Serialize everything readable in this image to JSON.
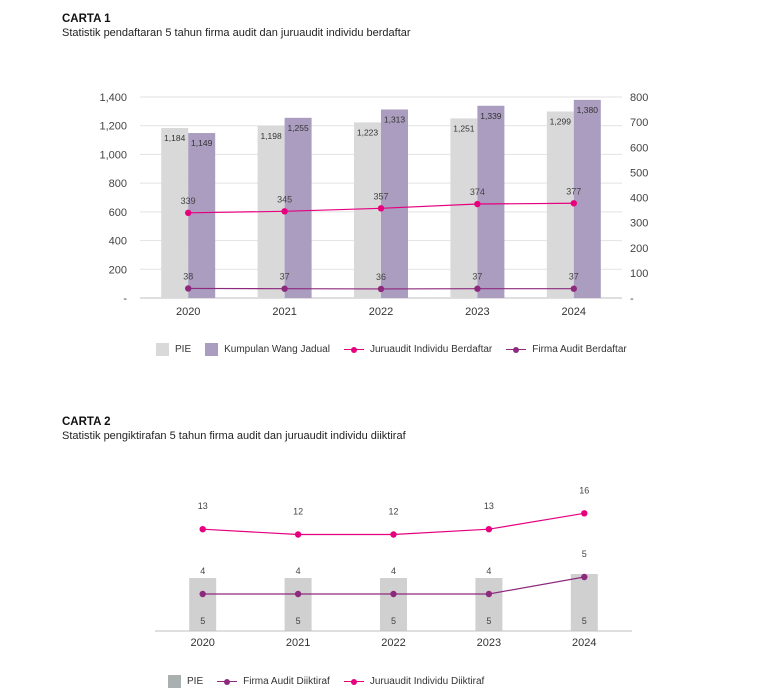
{
  "colors": {
    "pie": "#d9d9d9",
    "kwj": "#aa9dbf",
    "juruaudit": "#e6007e",
    "firma": "#8e2a7e",
    "pie2": "#d0d0d0"
  },
  "chart1": {
    "heading": "CARTA 1",
    "subtitle": "Statistik pendaftaran 5 tahun firma audit dan juruaudit individu berdaftar"
  },
  "chart2": {
    "heading": "CARTA 2",
    "subtitle": "Statistik pengiktirafan 5 tahun firma audit dan juruaudit individu diiktiraf"
  },
  "chart_data": [
    {
      "type": "bar",
      "title": "Statistik pendaftaran 5 tahun firma audit dan juruaudit individu berdaftar",
      "categories": [
        "2020",
        "2021",
        "2022",
        "2023",
        "2024"
      ],
      "ylim": [
        0,
        1400
      ],
      "yticks": [
        "-",
        "200",
        "400",
        "600",
        "800",
        "1,000",
        "1,200",
        "1,400"
      ],
      "y2lim": [
        0,
        800
      ],
      "y2ticks": [
        "-",
        "100",
        "200",
        "300",
        "400",
        "500",
        "600",
        "700",
        "800"
      ],
      "series": [
        {
          "name": "PIE",
          "kind": "bar",
          "axis": "left",
          "values": [
            1184,
            1198,
            1223,
            1251,
            1299
          ],
          "labels": [
            "1,184",
            "1,198",
            "1,223",
            "1,251",
            "1,299"
          ]
        },
        {
          "name": "Kumpulan Wang Jadual",
          "kind": "bar",
          "axis": "left",
          "values": [
            1149,
            1255,
            1313,
            1339,
            1380
          ],
          "labels": [
            "1,149",
            "1,255",
            "1,313",
            "1,339",
            "1,380"
          ]
        },
        {
          "name": "Juruaudit Individu Berdaftar",
          "kind": "line",
          "axis": "right",
          "values": [
            339,
            345,
            357,
            374,
            377
          ],
          "labels": [
            "339",
            "345",
            "357",
            "374",
            "377"
          ]
        },
        {
          "name": "Firma Audit Berdaftar",
          "kind": "line",
          "axis": "right",
          "values": [
            38,
            37,
            36,
            37,
            37
          ],
          "labels": [
            "38",
            "37",
            "36",
            "37",
            "37"
          ]
        }
      ],
      "legend": [
        "PIE",
        "Kumpulan Wang Jadual",
        "Juruaudit Individu Berdaftar",
        "Firma Audit Berdaftar"
      ]
    },
    {
      "type": "bar",
      "title": "Statistik pengiktirafan 5 tahun firma audit dan juruaudit individu diiktiraf",
      "categories": [
        "2020",
        "2021",
        "2022",
        "2023",
        "2024"
      ],
      "series": [
        {
          "name": "PIE",
          "kind": "bar",
          "values": [
            5,
            5,
            5,
            5,
            5
          ],
          "labels": [
            "5",
            "5",
            "5",
            "5",
            "5"
          ]
        },
        {
          "name": "Firma Audit Diiktiraf",
          "kind": "line",
          "values": [
            4,
            4,
            4,
            4,
            5
          ],
          "labels": [
            "4",
            "4",
            "4",
            "4",
            "5"
          ]
        },
        {
          "name": "Juruaudit Individu Diiktiraf",
          "kind": "line",
          "values": [
            13,
            12,
            12,
            13,
            16
          ],
          "labels": [
            "13",
            "12",
            "12",
            "13",
            "16"
          ]
        }
      ],
      "legend": [
        "PIE",
        "Firma Audit Diiktiraf",
        "Juruaudit Individu Diiktiraf"
      ]
    }
  ]
}
